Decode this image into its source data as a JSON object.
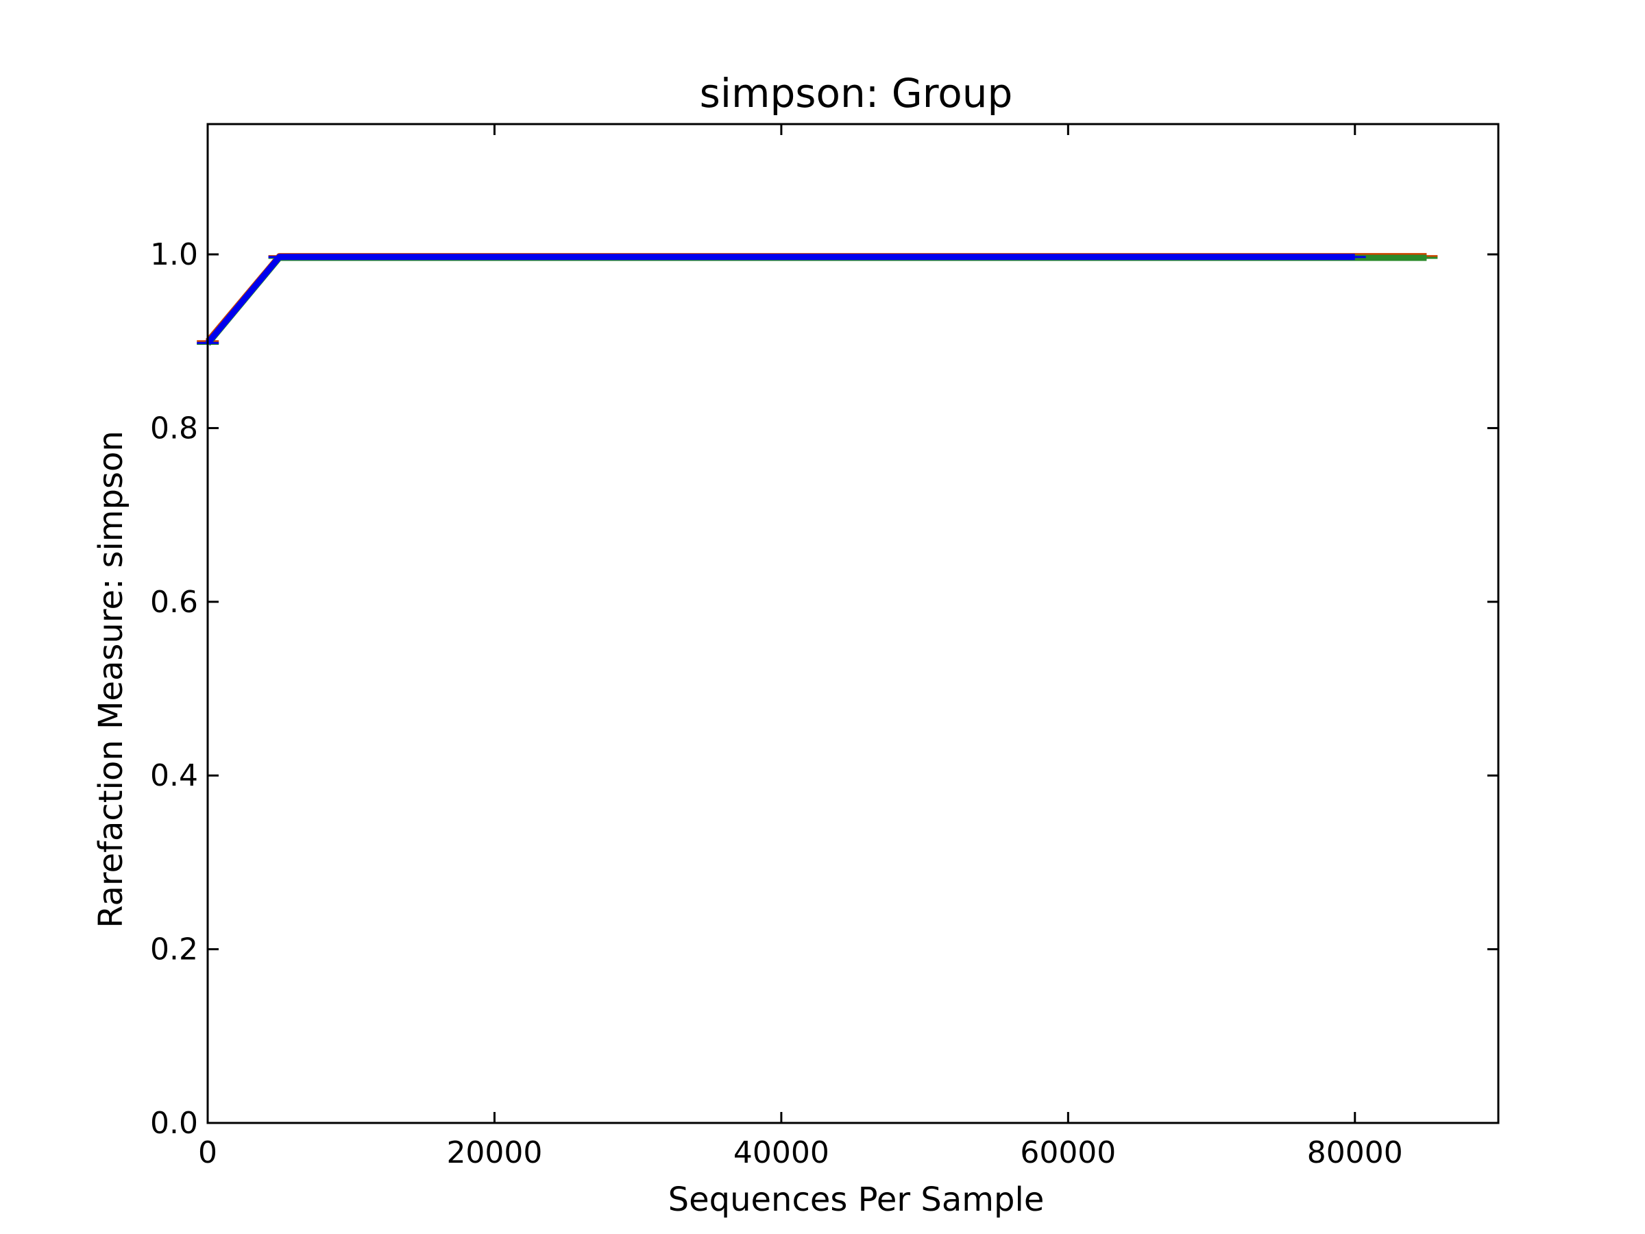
{
  "chart_data": {
    "type": "line",
    "title": "simpson: Group",
    "xlabel": "Sequences Per Sample",
    "ylabel": "Rarefaction Measure: simpson",
    "xlim": [
      0,
      90000
    ],
    "ylim": [
      0,
      1.15
    ],
    "x_ticks": [
      0,
      20000,
      40000,
      60000,
      80000
    ],
    "x_tick_labels": [
      "0",
      "20000",
      "40000",
      "60000",
      "80000"
    ],
    "y_ticks": [
      0,
      0.2,
      0.4,
      0.6,
      0.8,
      1.0
    ],
    "y_tick_labels": [
      "0.0",
      "0.2",
      "0.4",
      "0.6",
      "0.8",
      "1.0"
    ],
    "grid": false,
    "legend": "none",
    "series": [
      {
        "color": "#cc4400",
        "x": [
          10,
          5000,
          85000
        ],
        "y": [
          0.9,
          0.998,
          0.998
        ],
        "error_bars": true
      },
      {
        "color": "#2a8a2a",
        "x": [
          10,
          5000,
          85000
        ],
        "y": [
          0.897,
          0.996,
          0.996
        ],
        "error_bars": true
      },
      {
        "color": "#0000ee",
        "x": [
          10,
          5000,
          80000
        ],
        "y": [
          0.898,
          0.997,
          0.997
        ],
        "error_bars": true
      }
    ]
  }
}
